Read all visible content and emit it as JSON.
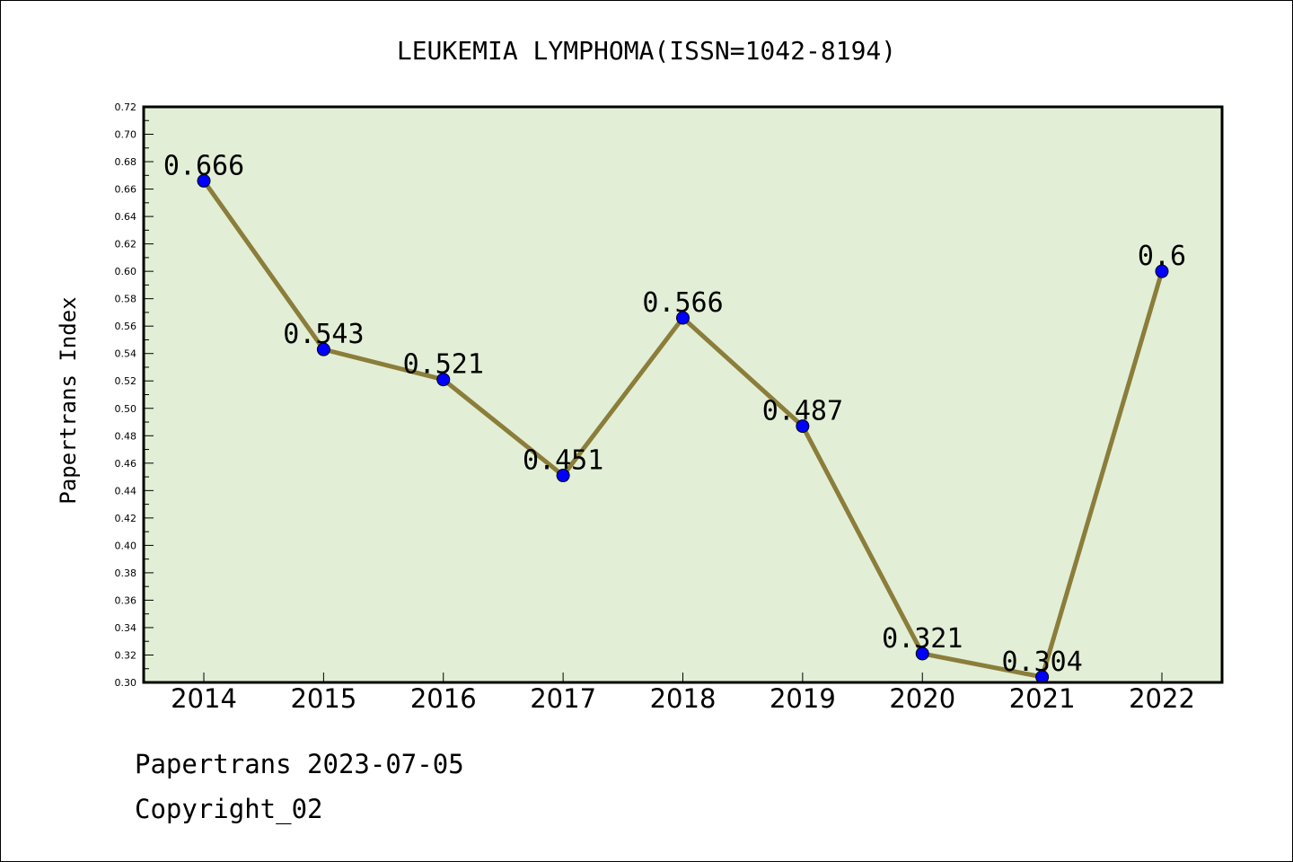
{
  "chart_data": {
    "type": "line",
    "title": "LEUKEMIA LYMPHOMA(ISSN=1042-8194)",
    "xlabel": "",
    "ylabel": "Papertrans Index",
    "categories": [
      "2014",
      "2015",
      "2016",
      "2017",
      "2018",
      "2019",
      "2020",
      "2021",
      "2022"
    ],
    "series": [
      {
        "values": [
          0.666,
          0.543,
          0.521,
          0.451,
          0.566,
          0.487,
          0.321,
          0.304,
          0.6
        ],
        "data_labels": [
          "0.666",
          "0.543",
          "0.521",
          "0.451",
          "0.566",
          "0.487",
          "0.321",
          "0.304",
          "0.6"
        ],
        "line_color": "#8b7d3a",
        "marker_color": "#0000ff"
      }
    ],
    "ylim": [
      0.3,
      0.72
    ],
    "yticks": [
      "0.30",
      "0.32",
      "0.34",
      "0.36",
      "0.38",
      "0.40",
      "0.42",
      "0.44",
      "0.46",
      "0.48",
      "0.50",
      "0.52",
      "0.54",
      "0.56",
      "0.58",
      "0.60",
      "0.62",
      "0.64",
      "0.66",
      "0.68",
      "0.70",
      "0.72"
    ],
    "plot_background": "#e2efd6",
    "grid": false,
    "legend": "none"
  },
  "footer": {
    "line1": "Papertrans 2023-07-05",
    "line2": "Copyright_02"
  }
}
